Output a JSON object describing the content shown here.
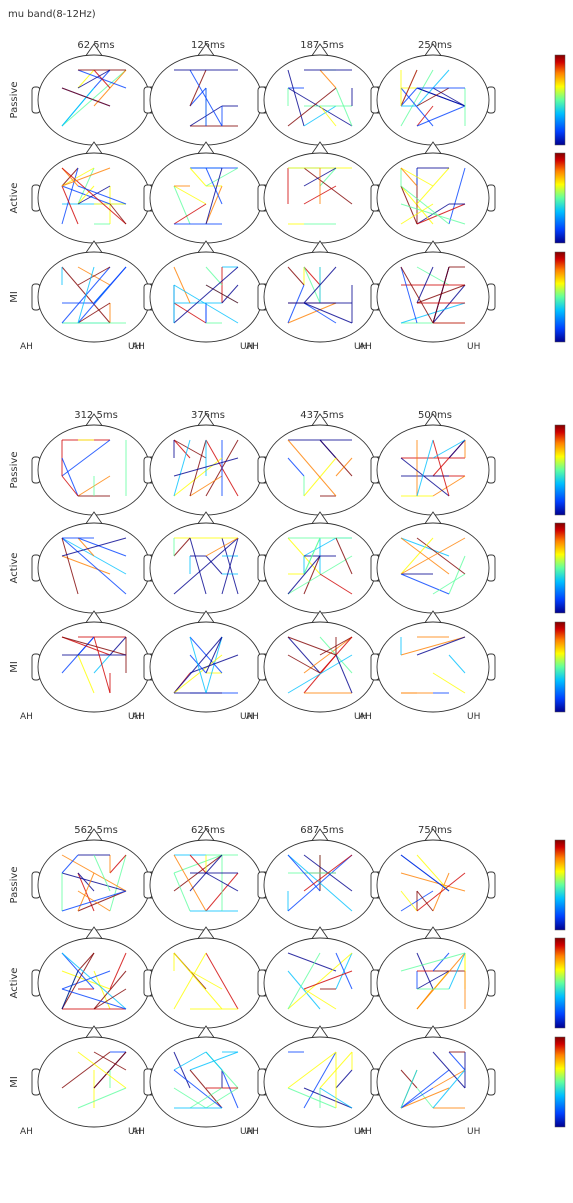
{
  "title": "mu band(8-12Hz)",
  "conditions": [
    "Passive",
    "Active",
    "MI"
  ],
  "hemisphere_labels": {
    "left": "AH",
    "right": "UH"
  },
  "colormap": [
    "#00008f",
    "#0040ff",
    "#00c0ff",
    "#60ffa0",
    "#ffff00",
    "#ff8000",
    "#d00000",
    "#800000"
  ],
  "blocks": [
    {
      "times": [
        "62.5ms",
        "125ms",
        "187.5ms",
        "250ms"
      ]
    },
    {
      "times": [
        "312.5ms",
        "375ms",
        "437.5ms",
        "500ms"
      ]
    },
    {
      "times": [
        "562.5ms",
        "625ms",
        "687.5ms",
        "750ms"
      ]
    }
  ]
}
